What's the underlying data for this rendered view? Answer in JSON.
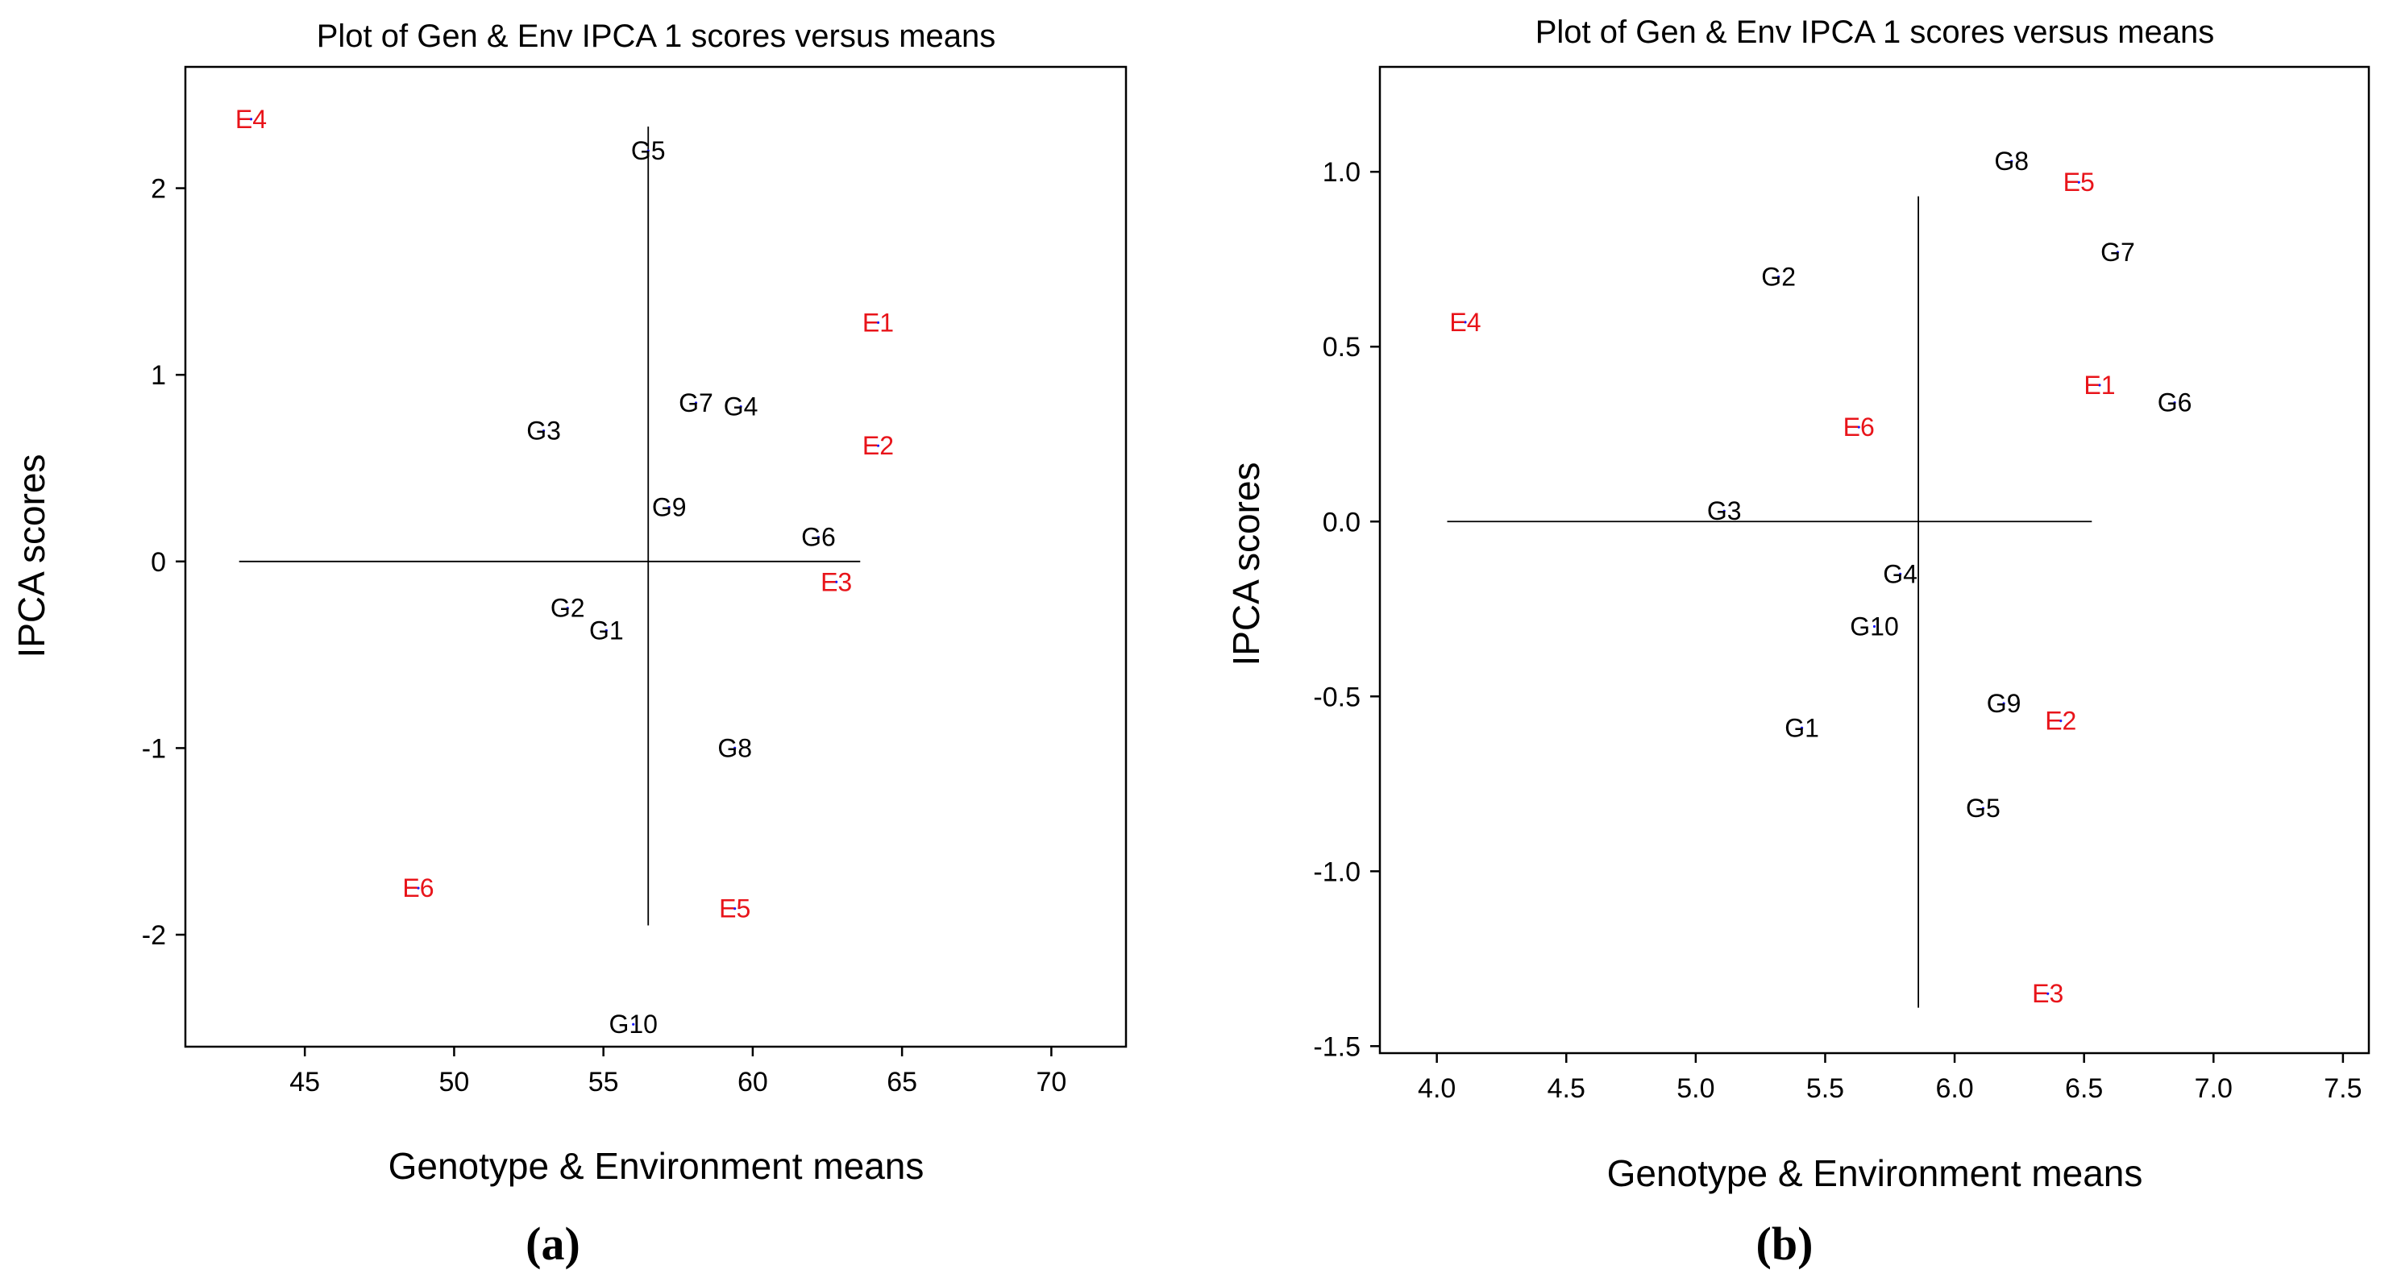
{
  "colors": {
    "genotype": "#000000",
    "environment": "#e8141a",
    "reference_line": "#000000",
    "marker": "#1a1aff",
    "frame": "#000000"
  },
  "chart_data": [
    {
      "type": "scatter",
      "panel_label": "(a)",
      "title": "Plot of Gen & Env IPCA 1 scores versus means",
      "xlabel": "Genotype & Environment means",
      "ylabel": "IPCA scores",
      "xlim": [
        41,
        72.5
      ],
      "ylim": [
        -2.6,
        2.65
      ],
      "xticks": [
        45,
        50,
        55,
        60,
        65,
        70
      ],
      "yticks": [
        -2,
        -1,
        0,
        1,
        2
      ],
      "xtick_labels": [
        "45",
        "50",
        "55",
        "60",
        "65",
        "70"
      ],
      "ytick_labels": [
        "-2",
        "-1",
        "0",
        "1",
        "2"
      ],
      "grand_mean": 56.5,
      "hline": {
        "y": 0,
        "x_from": 42.8,
        "x_to": 63.6
      },
      "vline": {
        "x": 56.5,
        "y_from": -1.95,
        "y_to": 2.33
      },
      "genotypes": [
        {
          "label": "G1",
          "x": 55.1,
          "y": -0.37
        },
        {
          "label": "G2",
          "x": 53.8,
          "y": -0.25
        },
        {
          "label": "G3",
          "x": 53.0,
          "y": 0.7
        },
        {
          "label": "G4",
          "x": 59.6,
          "y": 0.83
        },
        {
          "label": "G5",
          "x": 56.5,
          "y": 2.2
        },
        {
          "label": "G6",
          "x": 62.2,
          "y": 0.13
        },
        {
          "label": "G7",
          "x": 58.1,
          "y": 0.85
        },
        {
          "label": "G8",
          "x": 59.4,
          "y": -1.0
        },
        {
          "label": "G9",
          "x": 57.2,
          "y": 0.29
        },
        {
          "label": "G10",
          "x": 56.0,
          "y": -2.48
        }
      ],
      "environments": [
        {
          "label": "E1",
          "x": 64.2,
          "y": 1.28
        },
        {
          "label": "E2",
          "x": 64.2,
          "y": 0.62
        },
        {
          "label": "E3",
          "x": 62.8,
          "y": -0.11
        },
        {
          "label": "E4",
          "x": 43.2,
          "y": 2.37
        },
        {
          "label": "E5",
          "x": 59.4,
          "y": -1.86
        },
        {
          "label": "E6",
          "x": 48.8,
          "y": -1.75
        }
      ]
    },
    {
      "type": "scatter",
      "panel_label": "(b)",
      "title": "Plot of Gen & Env IPCA 1 scores versus means",
      "xlabel": "Genotype & Environment means",
      "ylabel": "IPCA scores",
      "xlim": [
        3.78,
        7.6
      ],
      "ylim": [
        -1.52,
        1.3
      ],
      "xticks": [
        4.0,
        4.5,
        5.0,
        5.5,
        6.0,
        6.5,
        7.0,
        7.5
      ],
      "yticks": [
        -1.5,
        -1.0,
        -0.5,
        0.0,
        0.5,
        1.0
      ],
      "xtick_labels": [
        "4.0",
        "4.5",
        "5.0",
        "5.5",
        "6.0",
        "6.5",
        "7.0",
        "7.5"
      ],
      "ytick_labels": [
        "-1.5",
        "-1.0",
        "-0.5",
        "0.0",
        "0.5",
        "1.0"
      ],
      "grand_mean": 5.86,
      "hline": {
        "y": 0,
        "x_from": 4.04,
        "x_to": 6.53
      },
      "vline": {
        "x": 5.86,
        "y_from": -1.39,
        "y_to": 0.93
      },
      "genotypes": [
        {
          "label": "G1",
          "x": 5.41,
          "y": -0.59
        },
        {
          "label": "G2",
          "x": 5.32,
          "y": 0.7
        },
        {
          "label": "G3",
          "x": 5.11,
          "y": 0.03
        },
        {
          "label": "G4",
          "x": 5.79,
          "y": -0.15
        },
        {
          "label": "G5",
          "x": 6.11,
          "y": -0.82
        },
        {
          "label": "G6",
          "x": 6.85,
          "y": 0.34
        },
        {
          "label": "G7",
          "x": 6.63,
          "y": 0.77
        },
        {
          "label": "G8",
          "x": 6.22,
          "y": 1.03
        },
        {
          "label": "G9",
          "x": 6.19,
          "y": -0.52
        },
        {
          "label": "G10",
          "x": 5.69,
          "y": -0.3
        }
      ],
      "environments": [
        {
          "label": "E1",
          "x": 6.56,
          "y": 0.39
        },
        {
          "label": "E2",
          "x": 6.41,
          "y": -0.57
        },
        {
          "label": "E3",
          "x": 6.36,
          "y": -1.35
        },
        {
          "label": "E4",
          "x": 4.11,
          "y": 0.57
        },
        {
          "label": "E5",
          "x": 6.48,
          "y": 0.97
        },
        {
          "label": "E6",
          "x": 5.63,
          "y": 0.27
        }
      ]
    }
  ]
}
